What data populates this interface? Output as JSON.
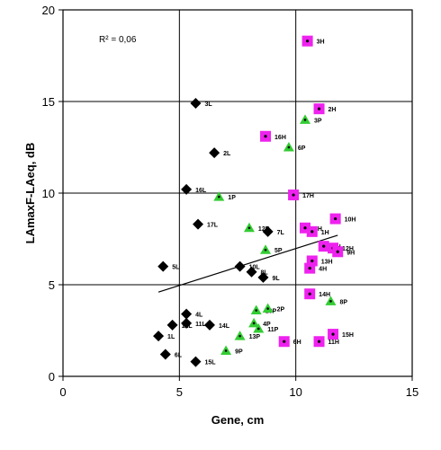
{
  "chart_data": {
    "type": "scatter",
    "title": "",
    "xlabel": "Gene, cm",
    "ylabel": "LAmaxF-LAeq, dB",
    "xlim": [
      0,
      15
    ],
    "ylim": [
      0,
      20
    ],
    "xticks": [
      0,
      5,
      10,
      15
    ],
    "yticks": [
      0,
      5,
      10,
      15,
      20
    ],
    "grid": "major, both axes",
    "annotation": "R² = 0,06",
    "series": [
      {
        "marker": "diamond",
        "color": "#000000",
        "points": [
          {
            "x": 5.7,
            "y": 14.9,
            "label": "3L"
          },
          {
            "x": 6.5,
            "y": 12.2,
            "label": "2L"
          },
          {
            "x": 5.3,
            "y": 10.2,
            "label": "16L"
          },
          {
            "x": 5.8,
            "y": 8.3,
            "label": "17L"
          },
          {
            "x": 8.8,
            "y": 7.9,
            "label": "7L"
          },
          {
            "x": 4.3,
            "y": 6.0,
            "label": "5L"
          },
          {
            "x": 7.6,
            "y": 6.0,
            "label": "10L"
          },
          {
            "x": 8.1,
            "y": 5.7,
            "label": "8L"
          },
          {
            "x": 8.6,
            "y": 5.4,
            "label": "9L"
          },
          {
            "x": 5.3,
            "y": 3.4,
            "label": "4L"
          },
          {
            "x": 4.7,
            "y": 2.8,
            "label": "12L"
          },
          {
            "x": 5.3,
            "y": 2.9,
            "label": "11L"
          },
          {
            "x": 6.3,
            "y": 2.8,
            "label": "14L"
          },
          {
            "x": 4.1,
            "y": 2.2,
            "label": "1L"
          },
          {
            "x": 4.4,
            "y": 1.2,
            "label": "6L"
          },
          {
            "x": 5.7,
            "y": 0.8,
            "label": "15L"
          }
        ]
      },
      {
        "marker": "triangle",
        "color": "#33cc33",
        "points": [
          {
            "x": 10.4,
            "y": 14.0,
            "label": "3P"
          },
          {
            "x": 9.7,
            "y": 12.5,
            "label": "6P"
          },
          {
            "x": 6.7,
            "y": 9.8,
            "label": "1P"
          },
          {
            "x": 8.0,
            "y": 8.1,
            "label": "12P"
          },
          {
            "x": 8.7,
            "y": 6.9,
            "label": "5P"
          },
          {
            "x": 11.5,
            "y": 4.1,
            "label": "8P"
          },
          {
            "x": 8.3,
            "y": 3.6,
            "label": "10P"
          },
          {
            "x": 8.8,
            "y": 3.7,
            "label": "2P"
          },
          {
            "x": 8.2,
            "y": 2.9,
            "label": "4P"
          },
          {
            "x": 8.4,
            "y": 2.6,
            "label": "11P"
          },
          {
            "x": 7.6,
            "y": 2.2,
            "label": "13P"
          },
          {
            "x": 7.0,
            "y": 1.4,
            "label": "9P"
          }
        ]
      },
      {
        "marker": "square",
        "color": "#ee22ee",
        "points": [
          {
            "x": 10.5,
            "y": 18.3,
            "label": "3H"
          },
          {
            "x": 11.0,
            "y": 14.6,
            "label": "2H"
          },
          {
            "x": 8.7,
            "y": 13.1,
            "label": "16H"
          },
          {
            "x": 9.9,
            "y": 9.9,
            "label": "17H"
          },
          {
            "x": 11.7,
            "y": 8.6,
            "label": "10H"
          },
          {
            "x": 10.4,
            "y": 8.1,
            "label": "5H"
          },
          {
            "x": 10.7,
            "y": 7.9,
            "label": "1H"
          },
          {
            "x": 11.2,
            "y": 7.1,
            "label": "7H"
          },
          {
            "x": 11.6,
            "y": 7.0,
            "label": "12H"
          },
          {
            "x": 11.8,
            "y": 6.8,
            "label": "9H"
          },
          {
            "x": 10.7,
            "y": 6.3,
            "label": "13H"
          },
          {
            "x": 10.6,
            "y": 5.9,
            "label": "4H"
          },
          {
            "x": 10.6,
            "y": 4.5,
            "label": "14H"
          },
          {
            "x": 9.5,
            "y": 1.9,
            "label": "6H"
          },
          {
            "x": 11.6,
            "y": 2.3,
            "label": "15H"
          },
          {
            "x": 11.0,
            "y": 1.9,
            "label": "11H"
          }
        ]
      }
    ],
    "trendline": {
      "x": [
        4.1,
        11.8
      ],
      "y": [
        4.6,
        7.7
      ]
    }
  }
}
